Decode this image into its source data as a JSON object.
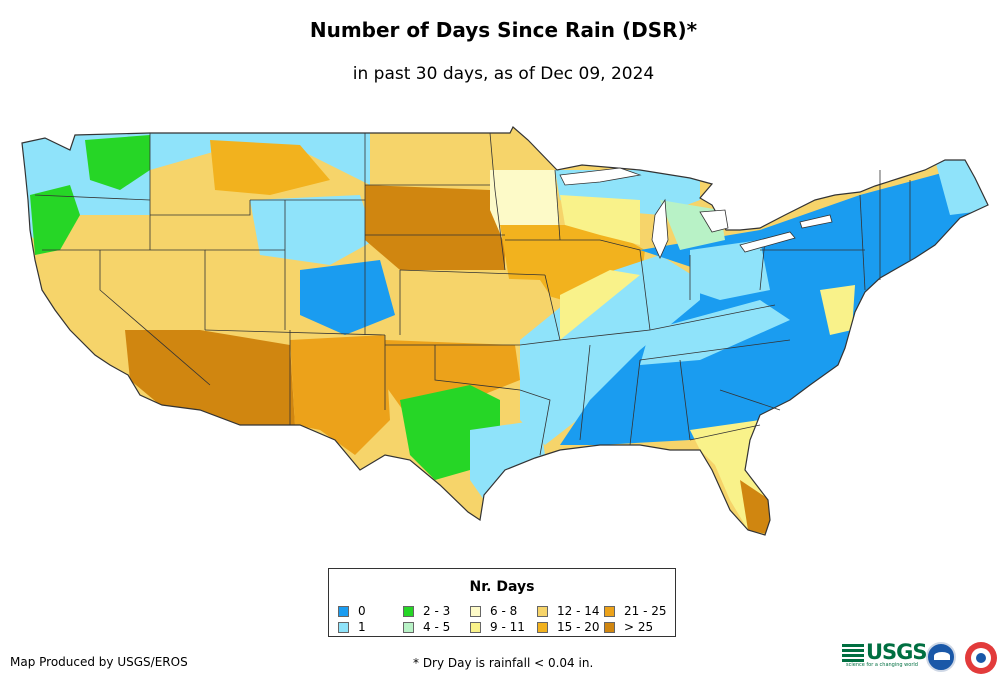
{
  "header": {
    "title": "Number of Days Since Rain (DSR)*",
    "subtitle": "in past 30 days, as of Dec 09, 2024"
  },
  "legend": {
    "title": "Nr. Days",
    "classes": [
      {
        "label": "0",
        "color": "#1a9cf0"
      },
      {
        "label": "1",
        "color": "#8fe3fa"
      },
      {
        "label": "2 - 3",
        "color": "#26d626"
      },
      {
        "label": "4 - 5",
        "color": "#b8f2c6"
      },
      {
        "label": "6 - 8",
        "color": "#fdfac8"
      },
      {
        "label": "9 - 11",
        "color": "#f9f28a"
      },
      {
        "label": "12 - 14",
        "color": "#f6d46a"
      },
      {
        "label": "15 - 20",
        "color": "#f2b21e"
      },
      {
        "label": "21 - 25",
        "color": "#eca21a"
      },
      {
        "label": "> 25",
        "color": "#d08610"
      }
    ]
  },
  "footer": {
    "credit": "Map Produced by USGS/EROS",
    "note": "* Dry Day is rainfall < 0.04 in."
  },
  "logos": {
    "usgs_word": "USGS",
    "usgs_tagline": "science for a changing world",
    "agencies": [
      "usgs-logo",
      "noaa-logo",
      "nws-logo"
    ]
  },
  "map": {
    "region": "Contiguous United States",
    "border_color": "#333333"
  }
}
